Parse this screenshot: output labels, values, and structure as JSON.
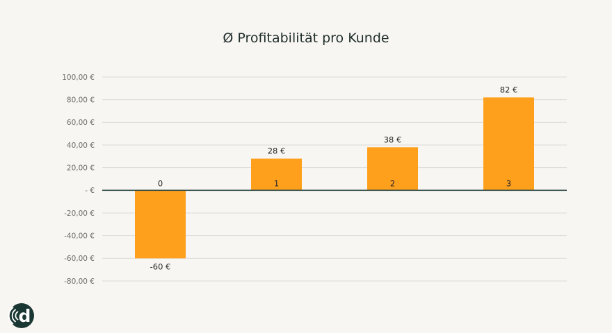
{
  "chart_data": {
    "type": "bar",
    "title": "Ø Profitabilität pro Kunde",
    "xlabel": "",
    "ylabel": "",
    "categories": [
      "0",
      "1",
      "2",
      "3"
    ],
    "values": [
      -60,
      28,
      38,
      82
    ],
    "value_labels": [
      "-60 €",
      "28 €",
      "38 €",
      "82 €"
    ],
    "ylim": [
      -80,
      100
    ],
    "y_ticks": [
      100,
      80,
      60,
      40,
      20,
      0,
      -20,
      -40,
      -60,
      -80
    ],
    "y_tick_labels": [
      "100,00 €",
      "80,00 €",
      "60,00 €",
      "40,00 €",
      "20,00 €",
      "- €",
      "-20,00 €",
      "-40,00 €",
      "-60,00 €",
      "-80,00 €"
    ],
    "grid": true,
    "legend": "none"
  },
  "colors": {
    "bar": "#ffa01c",
    "axis": "#2f4a45",
    "logo_bg": "#1b3733"
  },
  "logo": {
    "icon": "signal-d-logo-icon",
    "letter": "d"
  }
}
